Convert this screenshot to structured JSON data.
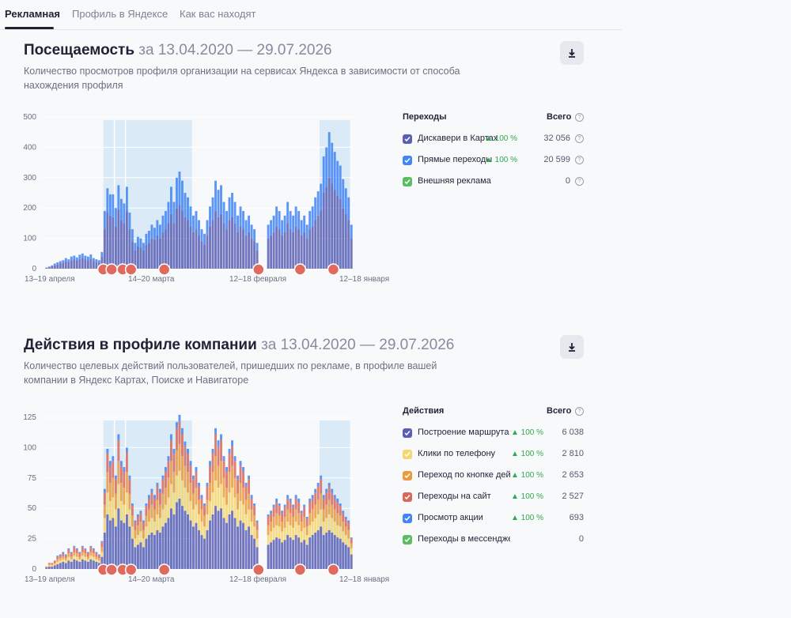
{
  "tabs": [
    {
      "label": "Рекламная",
      "active": true
    },
    {
      "label": "Профиль в Яндексе",
      "active": false
    },
    {
      "label": "Как вас находят",
      "active": false
    }
  ],
  "visits": {
    "title": "Посещаемость",
    "range": "за 13.04.2020 — 29.07.2026",
    "subtitle": "Количество просмотров профиля организации на сервисах Яндекса в зависимости от способа нахождения профиля",
    "download_icon": "download-icon",
    "legend": {
      "header": "Переходы",
      "total_header": "Всего",
      "items": [
        {
          "label": "Дискавери в Картах",
          "change": "▲ 100 %",
          "value": "32 056",
          "color": "#5b5fb4"
        },
        {
          "label": "Прямые переходы",
          "change": "▲ 100 %",
          "value": "20 599",
          "color": "#4285f4"
        },
        {
          "label": "Внешняя реклама",
          "change": "",
          "value": "0",
          "color": "#5dbb63"
        }
      ]
    }
  },
  "actions": {
    "title": "Действия в профиле компании",
    "range": "за 13.04.2020 — 29.07.2026",
    "subtitle": "Количество целевых действий пользователей, пришедших по рекламе, в профиле вашей компании в Яндекс Картах, Поиске и Навигаторе",
    "download_icon": "download-icon",
    "legend": {
      "header": "Действия",
      "total_header": "Всего",
      "items": [
        {
          "label": "Построение маршрута",
          "change": "▲ 100 %",
          "value": "6 038",
          "color": "#5b5fb4"
        },
        {
          "label": "Клики по телефону",
          "change": "▲ 100 %",
          "value": "2 810",
          "color": "#f5d76e"
        },
        {
          "label": "Переход по кнопке действия",
          "change": "▲ 100 %",
          "value": "2 653",
          "color": "#eb9a3c"
        },
        {
          "label": "Переходы на сайт",
          "change": "▲ 100 %",
          "value": "2 527",
          "color": "#d9675b"
        },
        {
          "label": "Просмотр акции",
          "change": "▲ 100 %",
          "value": "693",
          "color": "#4285f4"
        },
        {
          "label": "Переходы в мессенджеры",
          "change": "",
          "value": "0",
          "color": "#5dbb63"
        }
      ]
    }
  },
  "chart_data": [
    {
      "type": "bar",
      "stacked": true,
      "title": "Посещаемость",
      "y_ticks": [
        0,
        100,
        200,
        300,
        400,
        500
      ],
      "ylim": [
        0,
        500
      ],
      "x_tick_labels": [
        "13–19 апреля",
        "14–20 марта",
        "12–18 февраля",
        "12–18 января"
      ],
      "grid": true,
      "series": [
        {
          "name": "Дискавери в Картах",
          "color": "#5b5fb4",
          "values": [
            3,
            5,
            8,
            12,
            15,
            18,
            20,
            25,
            22,
            28,
            30,
            26,
            32,
            35,
            30,
            28,
            33,
            25,
            22,
            20,
            40,
            130,
            185,
            175,
            170,
            140,
            195,
            160,
            150,
            190,
            130,
            90,
            60,
            75,
            70,
            60,
            80,
            85,
            100,
            95,
            110,
            100,
            120,
            130,
            150,
            180,
            150,
            200,
            210,
            190,
            170,
            160,
            140,
            120,
            130,
            110,
            90,
            80,
            110,
            140,
            160,
            190,
            170,
            180,
            150,
            130,
            160,
            170,
            150,
            120,
            140,
            130,
            110,
            120,
            100,
            90,
            60,
            0,
            0,
            0,
            100,
            110,
            120,
            140,
            130,
            110,
            120,
            150,
            130,
            120,
            140,
            130,
            110,
            120,
            100,
            130,
            140,
            160,
            175,
            190,
            250,
            270,
            300,
            280,
            260,
            240,
            230,
            200,
            180,
            160,
            100
          ]
        },
        {
          "name": "Прямые переходы",
          "color": "#4285f4",
          "values": [
            1,
            2,
            3,
            5,
            6,
            7,
            8,
            10,
            9,
            12,
            13,
            11,
            14,
            15,
            13,
            12,
            14,
            10,
            9,
            8,
            15,
            60,
            80,
            70,
            75,
            60,
            80,
            70,
            65,
            80,
            55,
            40,
            25,
            30,
            30,
            25,
            35,
            40,
            45,
            40,
            50,
            45,
            55,
            60,
            70,
            90,
            70,
            100,
            110,
            100,
            80,
            75,
            65,
            55,
            60,
            50,
            40,
            35,
            50,
            65,
            75,
            100,
            90,
            95,
            70,
            60,
            75,
            80,
            70,
            55,
            65,
            60,
            50,
            55,
            45,
            40,
            25,
            0,
            0,
            0,
            45,
            50,
            55,
            65,
            60,
            50,
            55,
            70,
            60,
            55,
            65,
            60,
            50,
            55,
            45,
            60,
            65,
            75,
            80,
            90,
            120,
            130,
            150,
            135,
            125,
            115,
            110,
            95,
            85,
            75,
            45
          ]
        },
        {
          "name": "Внешняя реклама",
          "color": "#5dbb63",
          "values": []
        }
      ],
      "highlight_ranges": [
        [
          21,
          52
        ],
        [
          99,
          109
        ]
      ],
      "marker_positions": [
        21,
        24,
        28,
        31,
        43,
        77,
        92,
        104
      ]
    },
    {
      "type": "bar",
      "stacked": true,
      "title": "Действия в профиле компании",
      "y_ticks": [
        0,
        25,
        50,
        75,
        100,
        125
      ],
      "ylim": [
        0,
        125
      ],
      "x_tick_labels": [
        "13–19 апреля",
        "14–20 марта",
        "12–18 февраля",
        "12–18 января"
      ],
      "grid": true,
      "series": [
        {
          "name": "Построение маршрута",
          "color": "#5b5fb4",
          "values": [
            1,
            2,
            2,
            3,
            4,
            5,
            6,
            5,
            7,
            6,
            8,
            7,
            6,
            8,
            7,
            6,
            8,
            7,
            6,
            5,
            10,
            30,
            45,
            40,
            42,
            35,
            50,
            40,
            38,
            45,
            35,
            25,
            18,
            20,
            22,
            18,
            25,
            28,
            30,
            28,
            32,
            30,
            35,
            38,
            42,
            50,
            45,
            55,
            58,
            52,
            48,
            45,
            40,
            35,
            38,
            32,
            28,
            25,
            32,
            40,
            45,
            52,
            48,
            50,
            42,
            38,
            45,
            48,
            42,
            35,
            40,
            38,
            32,
            35,
            28,
            25,
            18,
            0,
            0,
            0,
            20,
            22,
            24,
            26,
            25,
            22,
            24,
            28,
            26,
            24,
            28,
            26,
            22,
            24,
            20,
            26,
            28,
            30,
            32,
            35,
            28,
            30,
            32,
            30,
            28,
            26,
            25,
            22,
            20,
            18,
            12
          ]
        },
        {
          "name": "Клики по телефону",
          "color": "#f5d76e",
          "values": [
            0,
            1,
            1,
            1,
            2,
            2,
            2,
            2,
            3,
            2,
            3,
            3,
            2,
            3,
            3,
            2,
            3,
            3,
            2,
            2,
            4,
            12,
            18,
            16,
            17,
            14,
            20,
            16,
            15,
            18,
            14,
            10,
            7,
            8,
            9,
            7,
            10,
            11,
            12,
            11,
            13,
            12,
            14,
            15,
            17,
            20,
            18,
            22,
            23,
            21,
            19,
            18,
            16,
            14,
            15,
            13,
            11,
            10,
            13,
            16,
            18,
            21,
            19,
            20,
            17,
            15,
            18,
            19,
            17,
            14,
            16,
            15,
            13,
            14,
            11,
            10,
            7,
            0,
            0,
            0,
            8,
            9,
            10,
            10,
            10,
            9,
            10,
            11,
            10,
            10,
            11,
            10,
            9,
            10,
            8,
            10,
            11,
            12,
            13,
            14,
            11,
            12,
            13,
            12,
            11,
            10,
            10,
            9,
            8,
            7,
            5
          ]
        },
        {
          "name": "Переход по кнопке действия",
          "color": "#eb9a3c",
          "values": [
            0,
            1,
            1,
            1,
            2,
            2,
            2,
            2,
            3,
            2,
            3,
            3,
            2,
            3,
            3,
            2,
            3,
            3,
            2,
            2,
            4,
            11,
            17,
            15,
            16,
            13,
            19,
            15,
            14,
            17,
            13,
            9,
            7,
            8,
            8,
            7,
            9,
            10,
            11,
            10,
            12,
            11,
            13,
            14,
            16,
            19,
            17,
            21,
            22,
            20,
            18,
            17,
            15,
            13,
            14,
            12,
            10,
            9,
            12,
            15,
            17,
            20,
            18,
            19,
            16,
            14,
            17,
            18,
            16,
            13,
            15,
            14,
            12,
            13,
            10,
            9,
            7,
            0,
            0,
            0,
            8,
            8,
            9,
            10,
            9,
            8,
            9,
            10,
            10,
            9,
            10,
            10,
            8,
            9,
            7,
            10,
            10,
            11,
            12,
            13,
            10,
            11,
            12,
            11,
            10,
            10,
            9,
            8,
            7,
            7,
            4
          ]
        },
        {
          "name": "Переходы на сайт",
          "color": "#d9675b",
          "values": [
            1,
            1,
            1,
            2,
            2,
            2,
            3,
            2,
            3,
            3,
            4,
            3,
            3,
            4,
            3,
            3,
            4,
            3,
            3,
            2,
            4,
            10,
            15,
            14,
            14,
            12,
            17,
            14,
            13,
            16,
            12,
            8,
            6,
            7,
            7,
            6,
            8,
            9,
            10,
            9,
            11,
            10,
            12,
            13,
            14,
            17,
            15,
            18,
            19,
            18,
            16,
            15,
            14,
            12,
            13,
            11,
            9,
            8,
            11,
            14,
            15,
            18,
            16,
            17,
            14,
            13,
            15,
            16,
            14,
            12,
            14,
            13,
            11,
            12,
            9,
            8,
            6,
            0,
            0,
            0,
            7,
            7,
            8,
            9,
            8,
            7,
            8,
            9,
            9,
            8,
            9,
            9,
            7,
            8,
            6,
            9,
            9,
            10,
            11,
            12,
            9,
            10,
            11,
            10,
            9,
            9,
            8,
            7,
            6,
            6,
            4
          ]
        },
        {
          "name": "Просмотр акции",
          "color": "#4285f4",
          "values": [
            0,
            0,
            0,
            0,
            1,
            1,
            1,
            1,
            1,
            1,
            1,
            1,
            1,
            1,
            1,
            1,
            1,
            1,
            1,
            1,
            1,
            3,
            4,
            4,
            4,
            3,
            5,
            4,
            4,
            4,
            3,
            2,
            2,
            2,
            2,
            2,
            2,
            3,
            3,
            3,
            3,
            3,
            3,
            4,
            4,
            5,
            4,
            5,
            5,
            5,
            4,
            4,
            4,
            3,
            4,
            3,
            3,
            2,
            3,
            4,
            4,
            5,
            5,
            5,
            4,
            4,
            4,
            5,
            4,
            3,
            4,
            4,
            3,
            3,
            3,
            2,
            2,
            0,
            0,
            0,
            2,
            2,
            2,
            3,
            2,
            2,
            2,
            3,
            3,
            2,
            3,
            3,
            2,
            2,
            2,
            3,
            3,
            3,
            3,
            3,
            3,
            3,
            3,
            3,
            3,
            3,
            2,
            2,
            2,
            2,
            1
          ]
        },
        {
          "name": "Переходы в мессенджеры",
          "color": "#5dbb63",
          "values": []
        }
      ],
      "highlight_ranges": [
        [
          21,
          52
        ],
        [
          99,
          109
        ]
      ],
      "marker_positions": [
        21,
        24,
        28,
        31,
        43,
        77,
        92,
        104
      ]
    }
  ]
}
